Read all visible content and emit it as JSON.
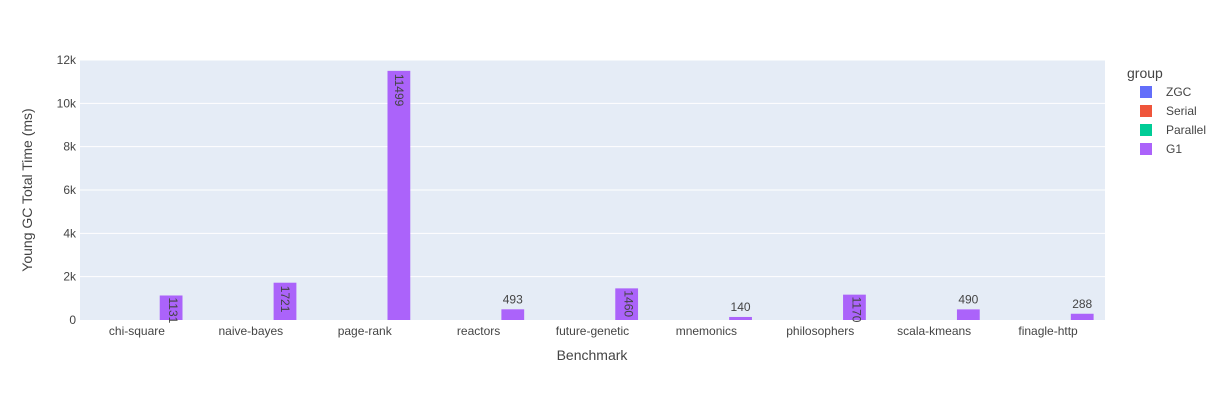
{
  "chart_data": {
    "type": "bar",
    "title": "",
    "xlabel": "Benchmark",
    "ylabel": "Young GC Total Time (ms)",
    "ylim": [
      0,
      12000
    ],
    "yticks": [
      {
        "value": 0,
        "label": "0"
      },
      {
        "value": 2000,
        "label": "2k"
      },
      {
        "value": 4000,
        "label": "4k"
      },
      {
        "value": 6000,
        "label": "6k"
      },
      {
        "value": 8000,
        "label": "8k"
      },
      {
        "value": 10000,
        "label": "10k"
      },
      {
        "value": 12000,
        "label": "12k"
      }
    ],
    "grid": true,
    "legend": {
      "title": "group",
      "placement": "right"
    },
    "categories": [
      "chi-square",
      "naive-bayes",
      "page-rank",
      "reactors",
      "future-genetic",
      "mnemonics",
      "philosophers",
      "scala-kmeans",
      "finagle-http"
    ],
    "series": [
      {
        "name": "ZGC",
        "color": "#636efa",
        "values": [
          0,
          0,
          0,
          0,
          0,
          0,
          0,
          0,
          0
        ],
        "labels": [
          "",
          "",
          "",
          "",
          "",
          "",
          "",
          "",
          ""
        ]
      },
      {
        "name": "Serial",
        "color": "#ef553b",
        "values": [
          0,
          0,
          0,
          0,
          0,
          0,
          0,
          0,
          0
        ],
        "labels": [
          "",
          "",
          "",
          "",
          "",
          "",
          "",
          "",
          ""
        ]
      },
      {
        "name": "Parallel",
        "color": "#00cc96",
        "values": [
          0,
          0,
          0,
          0,
          0,
          0,
          0,
          0,
          0
        ],
        "labels": [
          "",
          "",
          "",
          "",
          "",
          "",
          "",
          "",
          ""
        ]
      },
      {
        "name": "G1",
        "color": "#ab63fa",
        "values": [
          1131,
          1721,
          11499,
          493,
          1460,
          140,
          1170,
          490,
          288
        ],
        "labels": [
          "1131",
          "1721",
          "11499",
          "493",
          "1460",
          "140",
          "1170",
          "490",
          "288"
        ]
      }
    ]
  }
}
